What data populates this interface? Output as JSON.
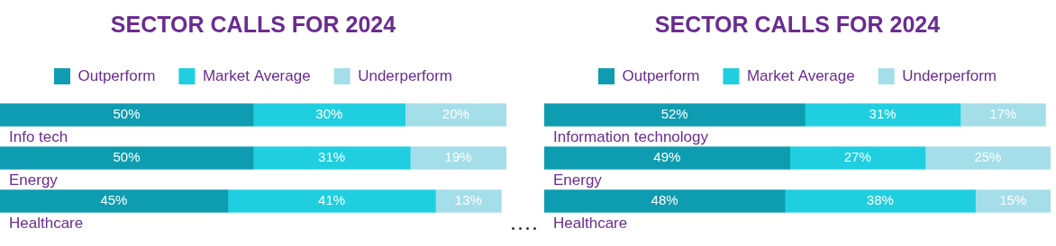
{
  "chart_data": [
    {
      "type": "bar",
      "title": "SECTOR CALLS FOR 2024",
      "orientation": "horizontal",
      "stacked": true,
      "data_labels": true,
      "legend": "top",
      "tick_labels": false,
      "grid": false,
      "categories": [
        "Info tech",
        "Energy",
        "Healthcare"
      ],
      "xlim": [
        0,
        100
      ],
      "series": [
        {
          "name": "Outperform",
          "color": "#0e9cb0",
          "values": [
            50,
            50,
            45
          ],
          "value_labels": [
            "50%",
            "50%",
            "45%"
          ]
        },
        {
          "name": "Market Average",
          "color": "#1fcfe0",
          "values": [
            30,
            31,
            41
          ],
          "value_labels": [
            "30%",
            "31%",
            "41%"
          ]
        },
        {
          "name": "Underperform",
          "color": "#a4dee8",
          "values": [
            20,
            19,
            13
          ],
          "value_labels": [
            "20%",
            "19%",
            "13%"
          ]
        }
      ]
    },
    {
      "type": "bar",
      "title": "SECTOR CALLS FOR 2024",
      "orientation": "horizontal",
      "stacked": true,
      "data_labels": true,
      "legend": "top",
      "tick_labels": false,
      "grid": false,
      "categories": [
        "Information technology",
        "Energy",
        "Healthcare"
      ],
      "xlim": [
        0,
        101
      ],
      "series": [
        {
          "name": "Outperform",
          "color": "#0e9cb0",
          "values": [
            52,
            49,
            48
          ],
          "value_labels": [
            "52%",
            "49%",
            "48%"
          ]
        },
        {
          "name": "Market Average",
          "color": "#1fcfe0",
          "values": [
            31,
            27,
            38
          ],
          "value_labels": [
            "31%",
            "27%",
            "38%"
          ]
        },
        {
          "name": "Underperform",
          "color": "#a4dee8",
          "values": [
            17,
            25,
            15
          ],
          "value_labels": [
            "17%",
            "25%",
            "15%"
          ]
        }
      ]
    }
  ]
}
